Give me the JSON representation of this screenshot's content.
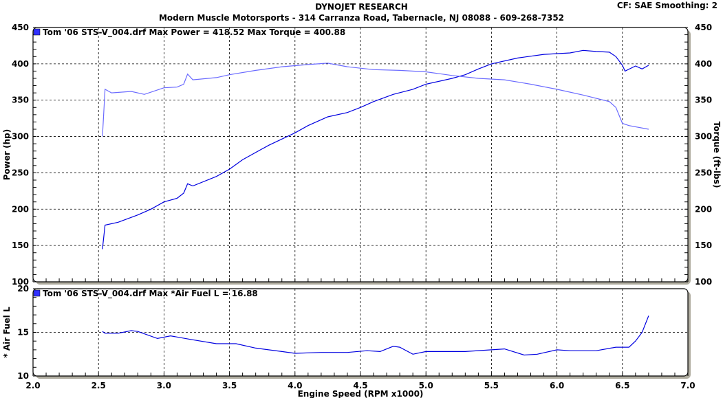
{
  "header": {
    "title": "DYNOJET RESEARCH",
    "subtitle": "Modern Muscle Motorsports - 314 Carranza Road, Tabernacle, NJ 08088 - 609-268-7352",
    "settings": "CF: SAE  Smoothing: 2"
  },
  "colors": {
    "power": "#0000e0",
    "torque": "#6a6aff",
    "afr": "#0000e0",
    "grid": "#000000",
    "shadow": "#b0ada0"
  },
  "chart_data": [
    {
      "type": "line",
      "title": "Power / Torque",
      "legend": "Tom '06 STS-V_004.drf Max Power = 418.52     Max Torque = 400.88",
      "legend_placement": "top-left",
      "xlabel": "Engine Speed (RPM x1000)",
      "ylabel": "Power (hp)",
      "y2label": "Torque (ft-lbs)",
      "xlim": [
        2.0,
        7.0
      ],
      "ylim": [
        100,
        450
      ],
      "y2lim": [
        100,
        450
      ],
      "xticks": [
        "2.0",
        "2.5",
        "3.0",
        "3.5",
        "4.0",
        "4.5",
        "5.0",
        "5.5",
        "6.0",
        "6.5",
        "7.0"
      ],
      "yticks": [
        "100",
        "150",
        "200",
        "250",
        "300",
        "350",
        "400",
        "450"
      ],
      "grid": true,
      "series": [
        {
          "name": "Power",
          "x": [
            2.53,
            2.55,
            2.65,
            2.8,
            2.9,
            3.0,
            3.1,
            3.15,
            3.18,
            3.22,
            3.4,
            3.5,
            3.6,
            3.8,
            4.0,
            4.1,
            4.25,
            4.4,
            4.5,
            4.6,
            4.75,
            4.9,
            5.0,
            5.2,
            5.3,
            5.4,
            5.5,
            5.7,
            5.9,
            6.1,
            6.2,
            6.3,
            6.4,
            6.45,
            6.5,
            6.52,
            6.6,
            6.65,
            6.7
          ],
          "y": [
            145,
            178,
            182,
            192,
            200,
            210,
            215,
            222,
            235,
            232,
            245,
            255,
            268,
            288,
            305,
            315,
            327,
            333,
            340,
            348,
            358,
            365,
            372,
            380,
            385,
            393,
            400,
            408,
            413,
            415,
            418.5,
            417,
            416,
            410,
            398,
            390,
            397,
            393,
            398
          ]
        },
        {
          "name": "Torque",
          "x": [
            2.53,
            2.55,
            2.6,
            2.75,
            2.85,
            3.0,
            3.1,
            3.15,
            3.18,
            3.22,
            3.4,
            3.5,
            3.7,
            3.9,
            4.1,
            4.25,
            4.4,
            4.6,
            4.8,
            5.0,
            5.2,
            5.4,
            5.6,
            5.8,
            6.0,
            6.2,
            6.4,
            6.45,
            6.5,
            6.55,
            6.7
          ],
          "y": [
            300,
            365,
            360,
            362,
            358,
            367,
            368,
            372,
            386,
            378,
            381,
            385,
            391,
            396,
            399,
            400.9,
            396,
            392,
            391,
            389,
            384,
            380,
            378,
            372,
            365,
            357,
            348,
            340,
            318,
            315,
            310
          ]
        }
      ]
    },
    {
      "type": "line",
      "title": "Air Fuel",
      "legend": "Tom '06 STS-V_004.drf Max *Air Fuel L = 16.88",
      "legend_placement": "top-left",
      "xlabel": "Engine Speed (RPM x1000)",
      "ylabel": "* Air Fuel L",
      "xlim": [
        2.0,
        7.0
      ],
      "ylim": [
        10,
        20
      ],
      "yticks": [
        "10",
        "15",
        "20"
      ],
      "grid": true,
      "series": [
        {
          "name": "Air Fuel L",
          "x": [
            2.53,
            2.55,
            2.65,
            2.75,
            2.8,
            2.95,
            3.05,
            3.2,
            3.4,
            3.55,
            3.7,
            3.9,
            4.0,
            4.2,
            4.4,
            4.55,
            4.65,
            4.75,
            4.8,
            4.9,
            5.0,
            5.3,
            5.5,
            5.6,
            5.75,
            5.85,
            6.0,
            6.1,
            6.3,
            6.45,
            6.55,
            6.6,
            6.65,
            6.7
          ],
          "y": [
            15.1,
            14.9,
            14.9,
            15.2,
            15.1,
            14.3,
            14.6,
            14.2,
            13.7,
            13.7,
            13.2,
            12.8,
            12.6,
            12.7,
            12.7,
            12.9,
            12.8,
            13.4,
            13.3,
            12.5,
            12.8,
            12.8,
            13.0,
            13.1,
            12.4,
            12.5,
            13.0,
            12.9,
            12.9,
            13.3,
            13.3,
            14.0,
            15.0,
            16.9
          ]
        }
      ]
    }
  ]
}
